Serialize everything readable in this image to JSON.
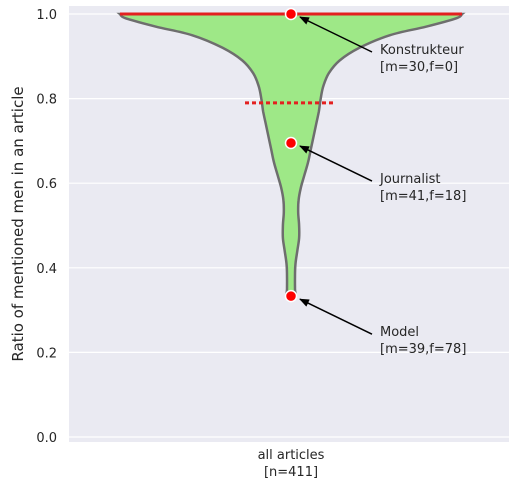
{
  "chart_data": {
    "type": "violin",
    "title": "",
    "xlabel": "",
    "ylabel": "Ratio of mentioned men in an article",
    "ylim": [
      0.0,
      1.0
    ],
    "yticks": [
      "0.0",
      "0.2",
      "0.4",
      "0.6",
      "0.8",
      "1.0"
    ],
    "grid": true,
    "category": {
      "line1": "all articles",
      "line2": "[n=411]"
    },
    "max_value": 1.0,
    "mean_value": 0.79,
    "min_value": 0.333,
    "distribution_profile": [
      [
        1.0,
        0.95
      ],
      [
        0.99,
        0.92
      ],
      [
        0.97,
        0.75
      ],
      [
        0.95,
        0.55
      ],
      [
        0.92,
        0.38
      ],
      [
        0.89,
        0.27
      ],
      [
        0.86,
        0.21
      ],
      [
        0.83,
        0.18
      ],
      [
        0.8,
        0.165
      ],
      [
        0.77,
        0.155
      ],
      [
        0.74,
        0.14
      ],
      [
        0.71,
        0.125
      ],
      [
        0.68,
        0.11
      ],
      [
        0.65,
        0.095
      ],
      [
        0.62,
        0.075
      ],
      [
        0.59,
        0.055
      ],
      [
        0.56,
        0.042
      ],
      [
        0.53,
        0.04
      ],
      [
        0.5,
        0.045
      ],
      [
        0.47,
        0.045
      ],
      [
        0.44,
        0.035
      ],
      [
        0.41,
        0.025
      ],
      [
        0.38,
        0.022
      ],
      [
        0.35,
        0.022
      ],
      [
        0.333,
        0.022
      ]
    ],
    "annotations": [
      {
        "value": 1.0,
        "name": "Konstrukteur",
        "counts": "[m=30,f=0]"
      },
      {
        "value": 0.695,
        "name": "Journalist",
        "counts": "[m=41,f=18]"
      },
      {
        "value": 0.333,
        "name": "Model",
        "counts": "[m=39,f=78]"
      }
    ],
    "colors": {
      "background": "#eaeaf2",
      "grid": "#ffffff",
      "violin_fill": "#9ee887",
      "violin_edge": "#6e6e6e",
      "max_line": "#e32020",
      "mean_line": "#e32020",
      "point": "#ff0000",
      "arrow": "#000000"
    }
  }
}
